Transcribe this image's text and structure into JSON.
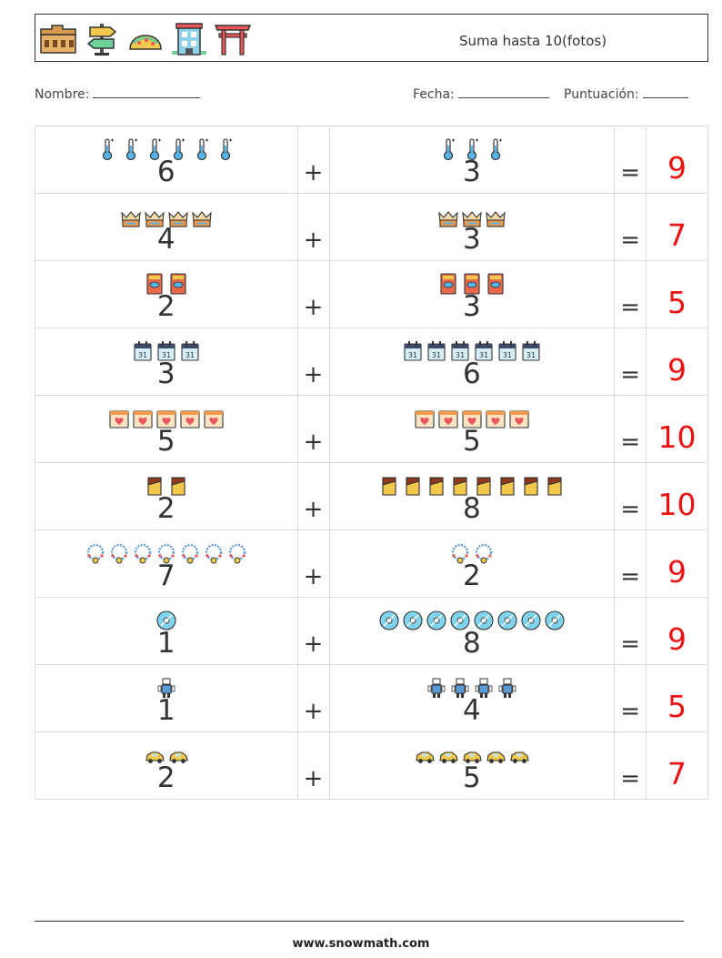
{
  "header": {
    "title": "Suma hasta 10(fotos)",
    "icons": [
      "colosseum-icon",
      "signpost-icon",
      "taco-icon",
      "building-icon",
      "torii-gate-icon"
    ]
  },
  "meta": {
    "name_label": "Nombre:",
    "date_label": "Fecha:",
    "score_label": "Puntuación:"
  },
  "symbols": {
    "plus": "+",
    "equals": "="
  },
  "answer_color": "#ee1111",
  "problems": [
    {
      "a": "6",
      "b": "3",
      "answer": "9",
      "icon": "thermometer-icon"
    },
    {
      "a": "4",
      "b": "3",
      "answer": "7",
      "icon": "crown-icon"
    },
    {
      "a": "2",
      "b": "3",
      "answer": "5",
      "icon": "passport-icon"
    },
    {
      "a": "3",
      "b": "6",
      "answer": "9",
      "icon": "calendar-icon"
    },
    {
      "a": "5",
      "b": "5",
      "answer": "10",
      "icon": "heart-calendar-icon"
    },
    {
      "a": "2",
      "b": "8",
      "answer": "10",
      "icon": "chocolate-icon"
    },
    {
      "a": "7",
      "b": "2",
      "answer": "9",
      "icon": "necklace-icon"
    },
    {
      "a": "1",
      "b": "8",
      "answer": "9",
      "icon": "disc-icon"
    },
    {
      "a": "1",
      "b": "4",
      "answer": "5",
      "icon": "robot-icon"
    },
    {
      "a": "2",
      "b": "5",
      "answer": "7",
      "icon": "car-icon"
    }
  ],
  "footer": {
    "url": "www.snowmath.com"
  }
}
